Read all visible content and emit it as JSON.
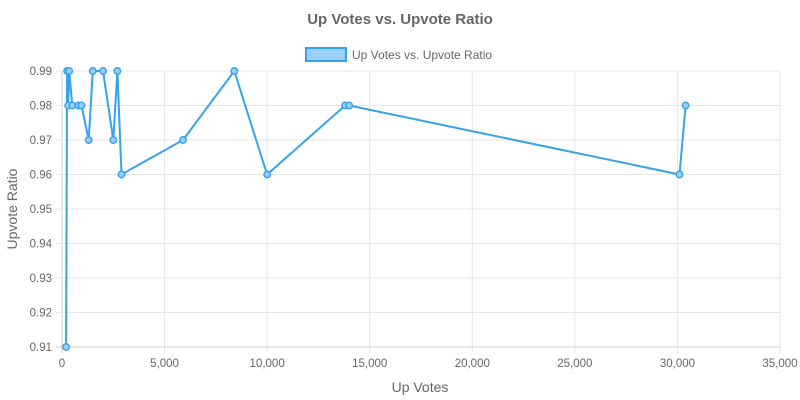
{
  "chart_data": {
    "type": "line",
    "title": "Up Votes vs. Upvote Ratio",
    "xlabel": "Up Votes",
    "ylabel": "Upvote Ratio",
    "xlim": [
      0,
      35000
    ],
    "ylim": [
      0.91,
      0.99
    ],
    "x_ticks": [
      0,
      5000,
      10000,
      15000,
      20000,
      25000,
      30000,
      35000
    ],
    "x_tick_labels": [
      "0",
      "5,000",
      "10,000",
      "15,000",
      "20,000",
      "25,000",
      "30,000",
      "35,000"
    ],
    "y_ticks": [
      0.91,
      0.92,
      0.93,
      0.94,
      0.95,
      0.96,
      0.97,
      0.98,
      0.99
    ],
    "y_tick_labels": [
      "0.91",
      "0.92",
      "0.93",
      "0.94",
      "0.95",
      "0.96",
      "0.97",
      "0.98",
      "0.99"
    ],
    "grid": true,
    "legend_position": "top-center",
    "series": [
      {
        "name": "Up Votes vs. Upvote Ratio",
        "color": "#36a2eb",
        "fill": "#9ad0f5",
        "points": [
          {
            "x": 200,
            "y": 0.91
          },
          {
            "x": 250,
            "y": 0.99
          },
          {
            "x": 300,
            "y": 0.98
          },
          {
            "x": 350,
            "y": 0.99
          },
          {
            "x": 500,
            "y": 0.98
          },
          {
            "x": 800,
            "y": 0.98
          },
          {
            "x": 950,
            "y": 0.98
          },
          {
            "x": 1300,
            "y": 0.97
          },
          {
            "x": 1500,
            "y": 0.99
          },
          {
            "x": 2000,
            "y": 0.99
          },
          {
            "x": 2500,
            "y": 0.97
          },
          {
            "x": 2700,
            "y": 0.99
          },
          {
            "x": 2900,
            "y": 0.96
          },
          {
            "x": 5900,
            "y": 0.97
          },
          {
            "x": 8400,
            "y": 0.99
          },
          {
            "x": 10000,
            "y": 0.96
          },
          {
            "x": 13800,
            "y": 0.98
          },
          {
            "x": 14000,
            "y": 0.98
          },
          {
            "x": 30100,
            "y": 0.96
          },
          {
            "x": 30400,
            "y": 0.98
          }
        ]
      }
    ]
  }
}
